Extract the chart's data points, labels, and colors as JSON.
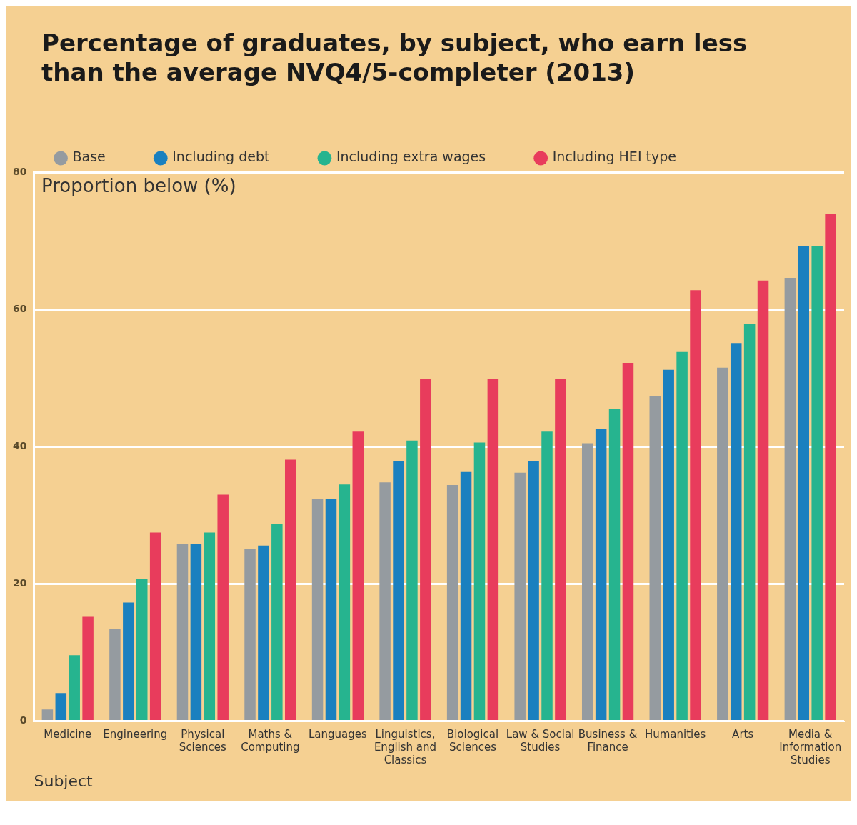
{
  "chart_data": {
    "type": "bar",
    "title": "Percentage of graduates, by subject, who earn less than the average NVQ4/5-completer (2013)",
    "ylabel": "Proportion below (%)",
    "xlabel": "Subject",
    "categories": [
      "Medicine",
      "Engineering",
      "Physical Sciences",
      "Maths & Computing",
      "Languages",
      "Linguistics, English and Classics",
      "Biological Sciences",
      "Law & Social Studies",
      "Business & Finance",
      "Humanities",
      "Arts",
      "Media & Information Studies"
    ],
    "series": [
      {
        "name": "Base",
        "color": "#959ba0",
        "values": [
          1.7,
          13.5,
          25.8,
          25.1,
          32.4,
          34.8,
          34.4,
          36.2,
          40.5,
          47.4,
          51.5,
          64.6
        ]
      },
      {
        "name": "Including debt",
        "color": "#1a80bf",
        "values": [
          4.1,
          17.3,
          25.8,
          25.6,
          32.4,
          37.9,
          36.3,
          37.9,
          42.6,
          51.2,
          55.1,
          69.2
        ]
      },
      {
        "name": "Including extra wages",
        "color": "#26b48f",
        "values": [
          9.6,
          20.7,
          27.5,
          28.8,
          34.5,
          40.9,
          40.6,
          42.2,
          45.5,
          53.8,
          57.9,
          69.2
        ]
      },
      {
        "name": "Including HEI type",
        "color": "#e83c5c",
        "values": [
          15.2,
          27.5,
          33,
          38.1,
          42.2,
          49.9,
          49.9,
          49.9,
          52.2,
          62.8,
          64.2,
          73.9
        ]
      }
    ],
    "ylim": [
      0,
      80
    ],
    "yticks": [
      0,
      20,
      40,
      60,
      80
    ],
    "grid": "y",
    "legend": "top left"
  }
}
